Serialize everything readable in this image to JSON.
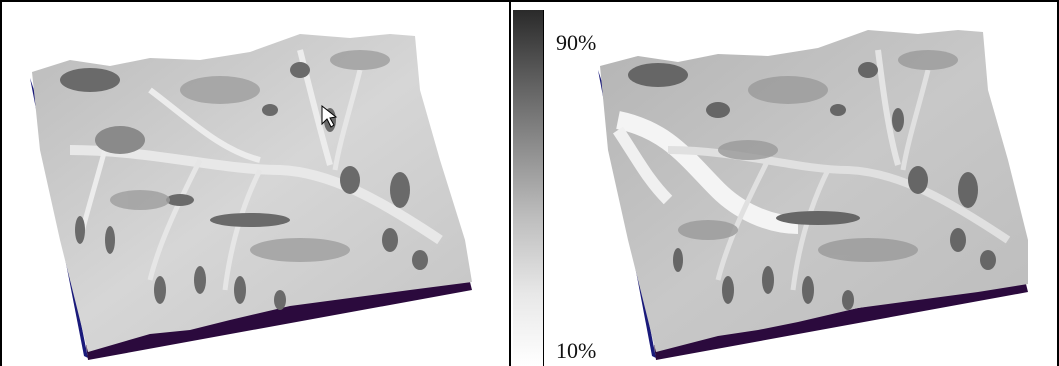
{
  "colorbar": {
    "max_label": "90%",
    "min_label": "10%",
    "gradient_colors": [
      "#2a2a2a",
      "#8c8c8c",
      "#ffffff"
    ]
  },
  "panels": [
    {
      "name": "terrain-left",
      "side_color": "#1a1a7a",
      "base_color": "#2b0a3d"
    },
    {
      "name": "terrain-right",
      "side_color": "#1a1a7a",
      "base_color": "#2b0a3d"
    }
  ],
  "cursor": {
    "icon": "arrow-cursor-icon"
  }
}
